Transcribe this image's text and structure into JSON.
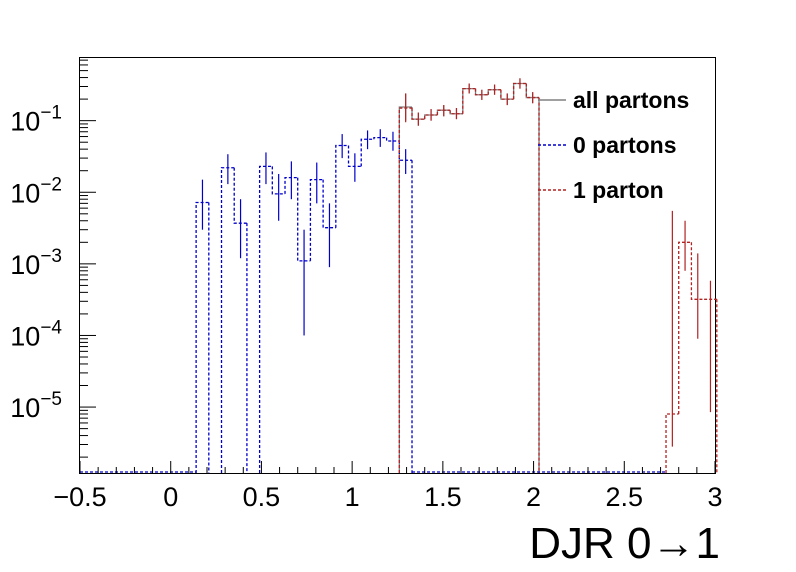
{
  "chart_data": {
    "type": "histogram",
    "xlabel": "DJR 0→1",
    "ylabel": "",
    "xlim": [
      -0.5,
      3.0
    ],
    "ylim": [
      1.2e-06,
      0.75
    ],
    "yscale": "log",
    "x_ticks": [
      {
        "value": -0.5,
        "label": "−0.5"
      },
      {
        "value": 0,
        "label": "0"
      },
      {
        "value": 0.5,
        "label": "0.5"
      },
      {
        "value": 1,
        "label": "1"
      },
      {
        "value": 1.5,
        "label": "1.5"
      },
      {
        "value": 2,
        "label": "2"
      },
      {
        "value": 2.5,
        "label": "2.5"
      },
      {
        "value": 3,
        "label": "3"
      }
    ],
    "y_ticks": [
      {
        "value": 1e-05,
        "base": "10",
        "exp": "−5"
      },
      {
        "value": 0.0001,
        "base": "10",
        "exp": "−4"
      },
      {
        "value": 0.001,
        "base": "10",
        "exp": "−3"
      },
      {
        "value": 0.01,
        "base": "10",
        "exp": "−2"
      },
      {
        "value": 0.1,
        "base": "10",
        "exp": "−1"
      }
    ],
    "bin_width": 0.07,
    "legend_position": "top-right",
    "grid": false,
    "series": [
      {
        "name": "all partons",
        "color": "#808080",
        "style": "solid",
        "bins": [
          {
            "x": 1.26,
            "y": 0.155,
            "err": [
              0.1,
              0.24
            ]
          },
          {
            "x": 1.33,
            "y": 0.105,
            "err": [
              0.085,
              0.13
            ]
          },
          {
            "x": 1.4,
            "y": 0.12,
            "err": [
              0.1,
              0.145
            ]
          },
          {
            "x": 1.47,
            "y": 0.14,
            "err": [
              0.115,
              0.165
            ]
          },
          {
            "x": 1.54,
            "y": 0.125,
            "err": [
              0.105,
              0.15
            ]
          },
          {
            "x": 1.61,
            "y": 0.28,
            "err": [
              0.24,
              0.33
            ]
          },
          {
            "x": 1.68,
            "y": 0.23,
            "err": [
              0.195,
              0.27
            ]
          },
          {
            "x": 1.75,
            "y": 0.27,
            "err": [
              0.23,
              0.32
            ]
          },
          {
            "x": 1.82,
            "y": 0.2,
            "err": [
              0.165,
              0.24
            ]
          },
          {
            "x": 1.89,
            "y": 0.33,
            "err": [
              0.28,
              0.39
            ]
          },
          {
            "x": 1.96,
            "y": 0.21,
            "err": [
              0.175,
              0.25
            ]
          }
        ]
      },
      {
        "name": "0 partons",
        "color": "#0000cc",
        "style": "dashed",
        "bins": [
          {
            "x": 0.14,
            "y": 0.0072,
            "err": [
              0.003,
              0.015
            ]
          },
          {
            "x": 0.28,
            "y": 0.022,
            "err": [
              0.013,
              0.034
            ]
          },
          {
            "x": 0.35,
            "y": 0.0037,
            "err": [
              0.0012,
              0.008
            ]
          },
          {
            "x": 0.49,
            "y": 0.023,
            "err": [
              0.013,
              0.036
            ]
          },
          {
            "x": 0.56,
            "y": 0.0095,
            "err": [
              0.004,
              0.018
            ]
          },
          {
            "x": 0.63,
            "y": 0.016,
            "err": [
              0.008,
              0.027
            ]
          },
          {
            "x": 0.7,
            "y": 0.0011,
            "err": [
              0.0001,
              0.003
            ]
          },
          {
            "x": 0.77,
            "y": 0.015,
            "err": [
              0.007,
              0.026
            ]
          },
          {
            "x": 0.84,
            "y": 0.0032,
            "err": [
              0.0009,
              0.007
            ]
          },
          {
            "x": 0.91,
            "y": 0.045,
            "err": [
              0.03,
              0.065
            ]
          },
          {
            "x": 0.98,
            "y": 0.023,
            "err": [
              0.014,
              0.035
            ]
          },
          {
            "x": 1.05,
            "y": 0.055,
            "err": [
              0.04,
              0.073
            ]
          },
          {
            "x": 1.12,
            "y": 0.058,
            "err": [
              0.043,
              0.076
            ]
          },
          {
            "x": 1.19,
            "y": 0.052,
            "err": [
              0.038,
              0.07
            ]
          },
          {
            "x": 1.26,
            "y": 0.028,
            "err": [
              0.018,
              0.04
            ]
          }
        ]
      },
      {
        "name": "1 parton",
        "color": "#b22222",
        "style": "dashed",
        "bins": [
          {
            "x": 1.26,
            "y": 0.15,
            "err": [
              0.095,
              0.24
            ]
          },
          {
            "x": 1.33,
            "y": 0.105,
            "err": [
              0.085,
              0.13
            ]
          },
          {
            "x": 1.4,
            "y": 0.12,
            "err": [
              0.1,
              0.145
            ]
          },
          {
            "x": 1.47,
            "y": 0.14,
            "err": [
              0.115,
              0.165
            ]
          },
          {
            "x": 1.54,
            "y": 0.125,
            "err": [
              0.105,
              0.15
            ]
          },
          {
            "x": 1.61,
            "y": 0.28,
            "err": [
              0.24,
              0.33
            ]
          },
          {
            "x": 1.68,
            "y": 0.23,
            "err": [
              0.195,
              0.27
            ]
          },
          {
            "x": 1.75,
            "y": 0.27,
            "err": [
              0.23,
              0.32
            ]
          },
          {
            "x": 1.82,
            "y": 0.2,
            "err": [
              0.165,
              0.24
            ]
          },
          {
            "x": 1.89,
            "y": 0.33,
            "err": [
              0.28,
              0.39
            ]
          },
          {
            "x": 1.96,
            "y": 0.21,
            "err": [
              0.175,
              0.25
            ]
          },
          {
            "x": 2.73,
            "y": 8e-06,
            "err": [
              2.8e-06,
              0.0055
            ]
          },
          {
            "x": 2.8,
            "y": 0.002,
            "err": [
              0.0008,
              0.004
            ]
          },
          {
            "x": 2.87,
            "y": 0.00032,
            "err": [
              9e-05,
              0.0014
            ]
          },
          {
            "x": 2.94,
            "y": 0.00032,
            "err": [
              8.5e-06,
              0.00058
            ]
          }
        ]
      }
    ]
  }
}
